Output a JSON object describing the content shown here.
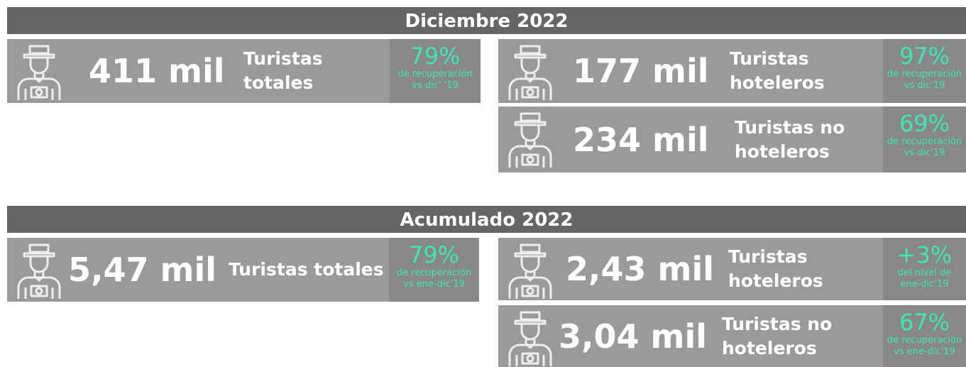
{
  "sections": [
    {
      "title": "Diciembre 2022",
      "cards": [
        {
          "value": "411 mil",
          "label": [
            "Turistas",
            "totales"
          ],
          "percent": "79%",
          "note": [
            "de recuperación",
            "vs dic' '19"
          ]
        },
        {
          "value": "177 mil",
          "label": [
            "Turistas",
            "hoteleros"
          ],
          "percent": "97%",
          "note": [
            "de recuperación",
            "vs dic'19"
          ]
        },
        {
          "value": "234 mil",
          "label": [
            "Turistas no",
            "hoteleros"
          ],
          "percent": "69%",
          "note": [
            "de recuperación",
            "vs dic'19"
          ]
        }
      ]
    },
    {
      "title": "Acumulado 2022",
      "cards": [
        {
          "value": "5,47 mil",
          "label": [
            "Turistas totales"
          ],
          "percent": "79%",
          "note": [
            "de recuperación",
            "vs ene-dic'19"
          ]
        },
        {
          "value": "2,43 mil",
          "label": [
            "Turistas",
            "hoteleros"
          ],
          "percent": "+3%",
          "note": [
            "del nivel de",
            "ene-dic'19"
          ]
        },
        {
          "value": "3,04 mil",
          "label": [
            "Turistas no",
            "hoteleros"
          ],
          "percent": "67%",
          "note": [
            "de recuperación",
            "vs ene-dic'19"
          ]
        }
      ]
    }
  ]
}
